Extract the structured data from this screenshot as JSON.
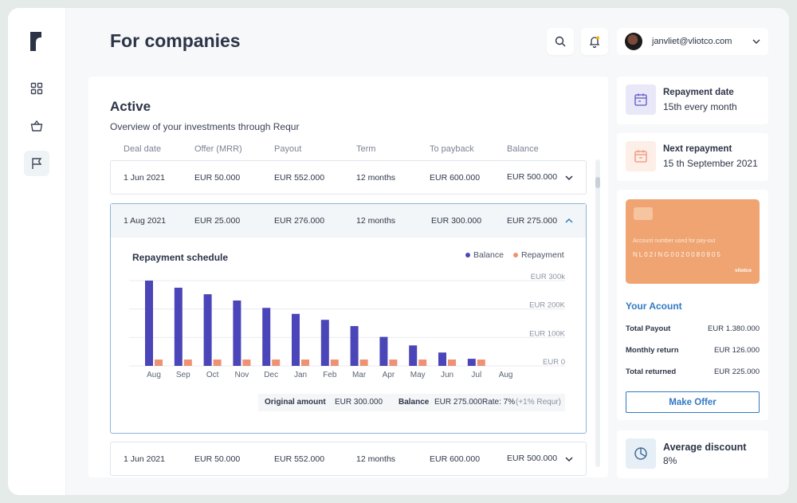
{
  "page": {
    "title": "For companies"
  },
  "user": {
    "email": "janvliet@vliotco.com"
  },
  "nav": [
    {
      "name": "dashboard",
      "icon": "grid-icon"
    },
    {
      "name": "shop",
      "icon": "basket-icon"
    },
    {
      "name": "companies",
      "icon": "flag-icon",
      "active": true
    }
  ],
  "active": {
    "title": "Active",
    "subtitle": "Overview of your investments through Requr",
    "columns": [
      "Deal date",
      "Offer (MRR)",
      "Payout",
      "Term",
      "To payback",
      "Balance"
    ],
    "rows": [
      {
        "date": "1 Jun 2021",
        "offer": "EUR 50.000",
        "payout": "EUR 552.000",
        "term": "12 months",
        "payback": "EUR 600.000",
        "balance": "EUR 500.000"
      },
      {
        "date": "1 Aug 2021",
        "offer": "EUR 25.000",
        "payout": "EUR 276.000",
        "term": "12 months",
        "payback": "EUR 300.000",
        "balance": "EUR 275.000"
      },
      {
        "date": "1 Jun 2021",
        "offer": "EUR 50.000",
        "payout": "EUR 552.000",
        "term": "12 months",
        "payback": "EUR 600.000",
        "balance": "EUR 500.000"
      }
    ]
  },
  "schedule": {
    "title": "Repayment schedule",
    "legend_balance": "Balance",
    "legend_repayment": "Repayment",
    "summary": {
      "original_label": "Original amount",
      "original_value": "EUR 300.000",
      "balance_label": "Balance",
      "balance_value": "EUR 275.000",
      "rate": "Rate: 7%",
      "rate_note": "(+1% Requr)"
    }
  },
  "chart_data": {
    "type": "bar",
    "categories": [
      "Aug",
      "Sep",
      "Oct",
      "Nov",
      "Dec",
      "Jan",
      "Feb",
      "Mar",
      "Apr",
      "May",
      "Jun",
      "Jul",
      "Aug"
    ],
    "series": [
      {
        "name": "Balance",
        "values": [
          300,
          275,
          252,
          230,
          204,
          183,
          162,
          140,
          102,
          72,
          47,
          25,
          0
        ]
      },
      {
        "name": "Repayment",
        "values": [
          25,
          25,
          25,
          25,
          25,
          25,
          25,
          25,
          25,
          25,
          25,
          25,
          0
        ]
      }
    ],
    "ylabels": [
      "EUR 300k",
      "EUR 200K",
      "EUR 100K",
      "EUR 0"
    ],
    "ylim": [
      0,
      300
    ],
    "colors": {
      "balance": "#4a45b8",
      "repayment": "#ee9273"
    },
    "grid": true,
    "legend": "top-right"
  },
  "side": {
    "repayment_date": {
      "title": "Repayment date",
      "value": "15th every month"
    },
    "next_repayment": {
      "title": "Next repayment",
      "value": "15 th September 2021"
    },
    "bank": {
      "label": "Account number used for pay-out",
      "number": "NL02ING0020080905",
      "brand": "vliotco"
    },
    "account": {
      "title": "Your Acount",
      "rows": [
        {
          "k": "Total Payout",
          "v": "EUR 1.380.000"
        },
        {
          "k": "Monthly return",
          "v": "EUR 126.000"
        },
        {
          "k": "Total returned",
          "v": "EUR 225.000"
        }
      ],
      "button": "Make Offer"
    },
    "avg_discount": {
      "title": "Average discount",
      "value": "8%"
    }
  }
}
